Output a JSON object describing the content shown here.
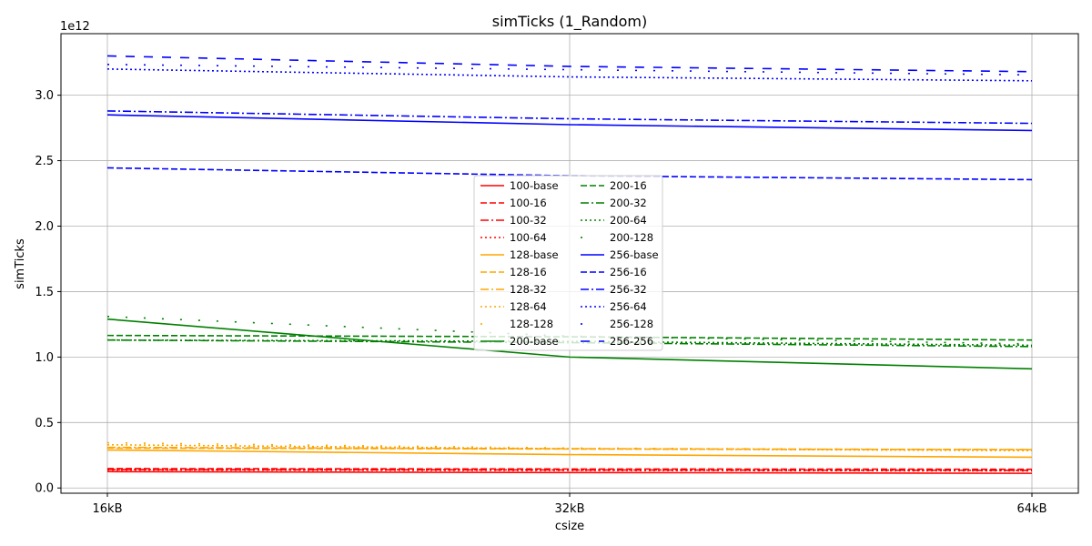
{
  "chart_data": {
    "type": "line",
    "title": "simTicks (1_Random)",
    "xlabel": "csize",
    "ylabel": "simTicks",
    "y_offset_label": "1e12",
    "categories": [
      "16kB",
      "32kB",
      "64kB"
    ],
    "y_scale": 1000000000000.0,
    "ylim": [
      -0.04,
      3.47
    ],
    "yticks": [
      0.0,
      0.5,
      1.0,
      1.5,
      2.0,
      2.5,
      3.0
    ],
    "ytick_labels": [
      "0.0",
      "0.5",
      "1.0",
      "1.5",
      "2.0",
      "2.5",
      "3.0"
    ],
    "grid": true,
    "legend_position": "center",
    "series": [
      {
        "name": "100-base",
        "color": "#ff0000",
        "dash": "solid",
        "values": [
          0.125,
          0.118,
          0.112
        ]
      },
      {
        "name": "100-16",
        "color": "#ff0000",
        "dash": "dashed",
        "values": [
          0.148,
          0.145,
          0.143
        ]
      },
      {
        "name": "100-32",
        "color": "#ff0000",
        "dash": "dashdot",
        "values": [
          0.142,
          0.138,
          0.135
        ]
      },
      {
        "name": "100-64",
        "color": "#ff0000",
        "dash": "dotted",
        "values": [
          0.138,
          0.134,
          0.131
        ]
      },
      {
        "name": "128-base",
        "color": "#ffa500",
        "dash": "solid",
        "values": [
          0.29,
          0.255,
          0.235
        ]
      },
      {
        "name": "128-16",
        "color": "#ffa500",
        "dash": "dashed",
        "values": [
          0.305,
          0.298,
          0.292
        ]
      },
      {
        "name": "128-32",
        "color": "#ffa500",
        "dash": "dashdot",
        "values": [
          0.31,
          0.3,
          0.293
        ]
      },
      {
        "name": "128-64",
        "color": "#ffa500",
        "dash": "dotted",
        "values": [
          0.33,
          0.3,
          0.285
        ]
      },
      {
        "name": "128-128",
        "color": "#ffa500",
        "dash": "sparse",
        "values": [
          0.345,
          0.305,
          0.29
        ]
      },
      {
        "name": "200-base",
        "color": "#008000",
        "dash": "solid",
        "values": [
          1.29,
          1.0,
          0.91
        ]
      },
      {
        "name": "200-16",
        "color": "#008000",
        "dash": "dashed",
        "values": [
          1.165,
          1.155,
          1.13
        ]
      },
      {
        "name": "200-32",
        "color": "#008000",
        "dash": "dashdot",
        "values": [
          1.13,
          1.11,
          1.08
        ]
      },
      {
        "name": "200-64",
        "color": "#008000",
        "dash": "dotted",
        "values": [
          1.13,
          1.12,
          1.09
        ]
      },
      {
        "name": "200-128",
        "color": "#008000",
        "dash": "sparse",
        "values": [
          1.31,
          1.16,
          1.1
        ]
      },
      {
        "name": "256-base",
        "color": "#0000ff",
        "dash": "solid",
        "values": [
          2.85,
          2.775,
          2.73
        ]
      },
      {
        "name": "256-16",
        "color": "#0000ff",
        "dash": "dashed",
        "values": [
          2.445,
          2.385,
          2.355
        ]
      },
      {
        "name": "256-32",
        "color": "#0000ff",
        "dash": "dashdot",
        "values": [
          2.88,
          2.82,
          2.785
        ]
      },
      {
        "name": "256-64",
        "color": "#0000ff",
        "dash": "dotted",
        "values": [
          3.2,
          3.14,
          3.11
        ]
      },
      {
        "name": "256-128",
        "color": "#0000ff",
        "dash": "sparse",
        "values": [
          3.235,
          3.195,
          3.155
        ]
      },
      {
        "name": "256-256",
        "color": "#0000ff",
        "dash": "longdash",
        "values": [
          3.3,
          3.22,
          3.18
        ]
      }
    ]
  }
}
